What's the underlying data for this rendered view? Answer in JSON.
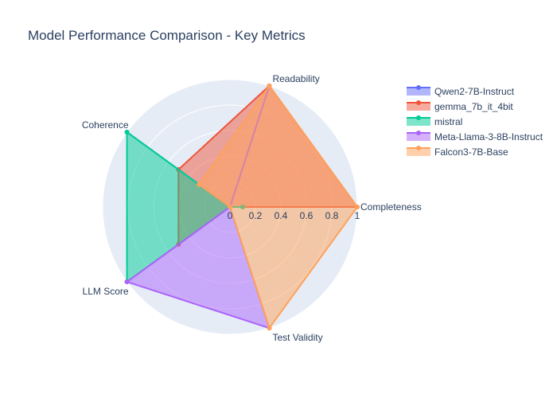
{
  "chart_data": {
    "type": "radar",
    "title": "Model Performance Comparison - Key Metrics",
    "axes": [
      "Completeness",
      "Test Validity",
      "LLM Score",
      "Coherence",
      "Readability"
    ],
    "radial_range": [
      0,
      1
    ],
    "radial_ticks": [
      "0",
      "0.2",
      "0.4",
      "0.6",
      "0.8",
      "1"
    ],
    "grid": true,
    "legend_position": "top-right",
    "series": [
      {
        "name": "Qwen2-7B-Instruct",
        "color": "#636efa",
        "values": [
          0,
          0,
          0,
          1.0,
          0
        ]
      },
      {
        "name": "gemma_7b_it_4bit",
        "color": "#EF553B",
        "values": [
          1.0,
          0,
          0.5,
          0.5,
          1.0
        ]
      },
      {
        "name": "mistral",
        "color": "#00cc96",
        "values": [
          0.1,
          0,
          1.0,
          1.0,
          0
        ]
      },
      {
        "name": "Meta-Llama-3-8B-Instruct",
        "color": "#ab63fa",
        "values": [
          0,
          1.0,
          1.0,
          0,
          1.0
        ]
      },
      {
        "name": "Falcon3-7B-Base",
        "color": "#FFA15A",
        "values": [
          1.0,
          1.0,
          0,
          0.3,
          1.0
        ]
      }
    ]
  }
}
